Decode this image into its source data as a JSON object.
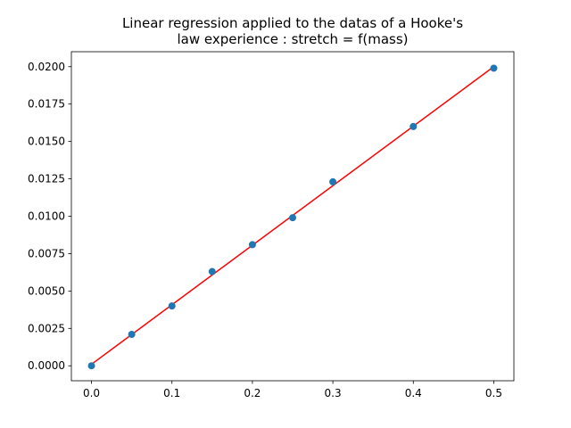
{
  "chart_data": {
    "type": "scatter",
    "title": "Linear regression applied to the datas of a Hooke's law experience : stretch = f(mass)",
    "title_lines": [
      "Linear regression applied to the datas of a Hooke's",
      "law experience : stretch = f(mass)"
    ],
    "xlabel": "",
    "ylabel": "",
    "xlim": [
      -0.025,
      0.525
    ],
    "ylim": [
      -0.001,
      0.021
    ],
    "x_ticks": [
      0.0,
      0.1,
      0.2,
      0.3,
      0.4,
      0.5
    ],
    "x_tick_labels": [
      "0.0",
      "0.1",
      "0.2",
      "0.3",
      "0.4",
      "0.5"
    ],
    "y_ticks": [
      0.0,
      0.0025,
      0.005,
      0.0075,
      0.01,
      0.0125,
      0.015,
      0.0175,
      0.02
    ],
    "y_tick_labels": [
      "0.0000",
      "0.0025",
      "0.0050",
      "0.0075",
      "0.0100",
      "0.0125",
      "0.0150",
      "0.0175",
      "0.0200"
    ],
    "grid": false,
    "legend": "none",
    "series": [
      {
        "kind": "scatter",
        "color": "#1f77b4",
        "points": [
          {
            "x": 0.0,
            "y": 0.0
          },
          {
            "x": 0.05,
            "y": 0.0021
          },
          {
            "x": 0.1,
            "y": 0.004
          },
          {
            "x": 0.15,
            "y": 0.0063
          },
          {
            "x": 0.2,
            "y": 0.0081
          },
          {
            "x": 0.25,
            "y": 0.0099
          },
          {
            "x": 0.3,
            "y": 0.0123
          },
          {
            "x": 0.4,
            "y": 0.016
          },
          {
            "x": 0.5,
            "y": 0.0199
          }
        ]
      },
      {
        "kind": "line",
        "color": "#ff0000",
        "points": [
          {
            "x": 0.0,
            "y": 0.0001
          },
          {
            "x": 0.5,
            "y": 0.02
          }
        ]
      }
    ]
  }
}
